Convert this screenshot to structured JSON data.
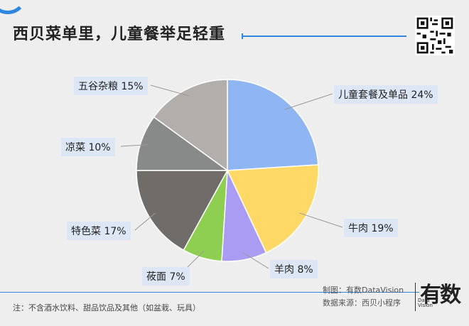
{
  "header": {
    "title": "西贝菜单里，儿童餐举足轻重"
  },
  "chart_data": {
    "type": "pie",
    "title": "西贝菜单里，儿童餐举足轻重",
    "start_angle_deg": 0,
    "direction": "clockwise",
    "slices": [
      {
        "label": "儿童套餐及单品 24%",
        "value": 24,
        "color": "#8fb6f2"
      },
      {
        "label": "牛肉 19%",
        "value": 19,
        "color": "#ffd866"
      },
      {
        "label": "羊肉 8%",
        "value": 8,
        "color": "#a99cf2"
      },
      {
        "label": "莜面 7%",
        "value": 7,
        "color": "#8ecf52"
      },
      {
        "label": "特色菜 17%",
        "value": 17,
        "color": "#6f6c6a"
      },
      {
        "label": "凉菜 10%",
        "value": 10,
        "color": "#878a88"
      },
      {
        "label": "五谷杂粮 15%",
        "value": 15,
        "color": "#b1aeac"
      }
    ]
  },
  "footer": {
    "note": "注：不含酒水饮料、甜品饮品及其他（如盆栽、玩具）",
    "credit_maker": "制图：有数DataVision",
    "credit_source": "数据来源：西贝小程序",
    "logo_text": "有数",
    "logo_sub1": "Data",
    "logo_sub2": "Vision"
  },
  "colors": {
    "accent": "#2e86de",
    "label_bg": "#dde6f4",
    "background": "#eeeeee"
  }
}
